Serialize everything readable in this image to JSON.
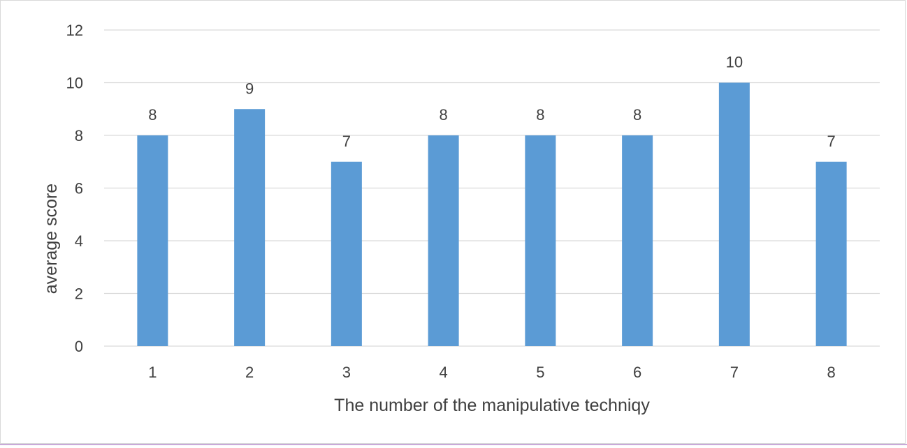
{
  "chart_data": {
    "type": "bar",
    "categories": [
      "1",
      "2",
      "3",
      "4",
      "5",
      "6",
      "7",
      "8"
    ],
    "values": [
      8,
      9,
      7,
      8,
      8,
      8,
      10,
      7
    ],
    "data_labels": [
      "8",
      "9",
      "7",
      "8",
      "8",
      "8",
      "10",
      "7"
    ],
    "title": "",
    "xlabel": "The number of the manipulative techniqy",
    "ylabel": "average score",
    "ylim": [
      0,
      12
    ],
    "yticks": [
      "0",
      "2",
      "4",
      "6",
      "8",
      "10",
      "12"
    ],
    "grid": true,
    "legend": "none",
    "bar_color": "#5b9bd5",
    "grid_color": "#d9d9d9"
  }
}
